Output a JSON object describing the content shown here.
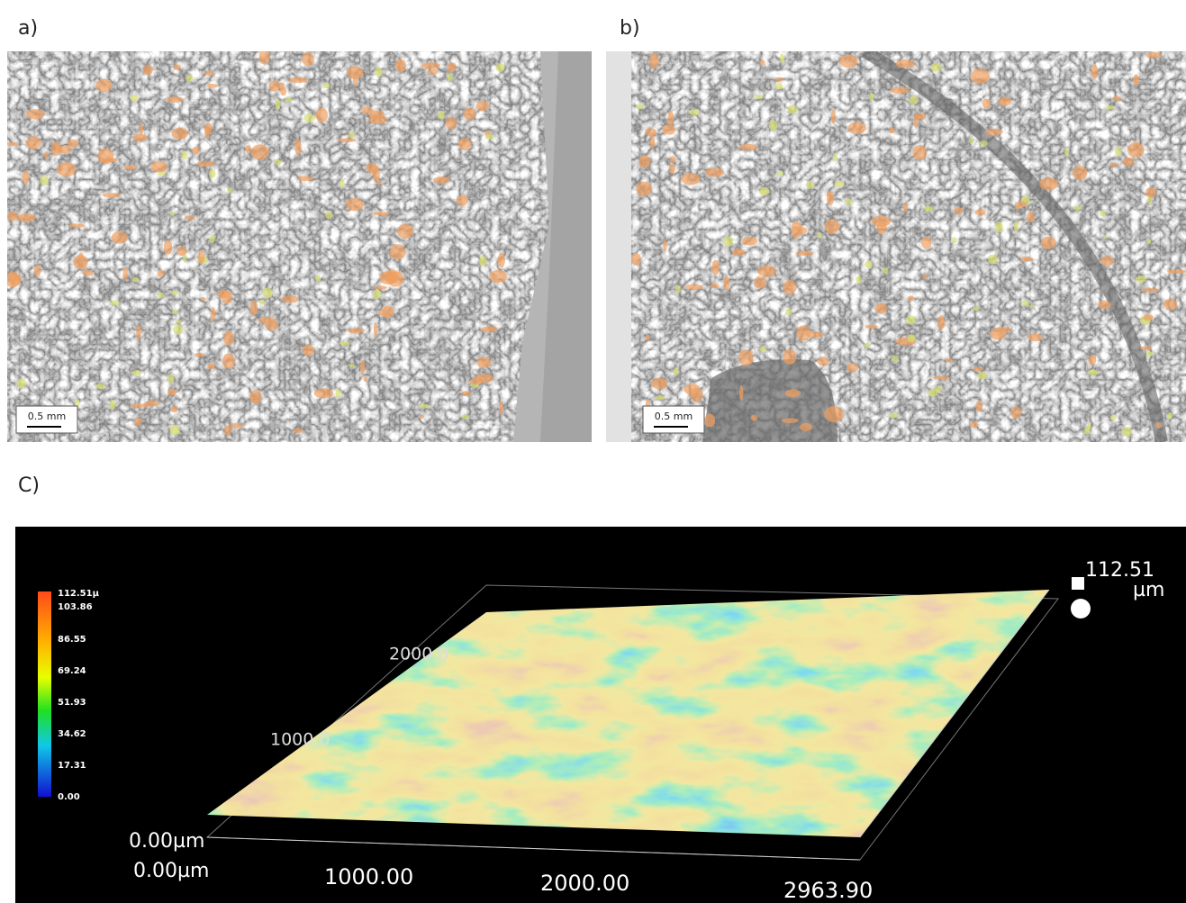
{
  "panels": [
    {
      "label": "a)",
      "scale_bar": "0.5 mm"
    },
    {
      "label": "b)",
      "scale_bar": "0.5 mm"
    }
  ],
  "panel_c": {
    "label": "C)",
    "colorbar": {
      "labels": [
        "112.51µ",
        "103.86",
        "86.55",
        "69.24",
        "51.93",
        "34.62",
        "17.31",
        "0.00"
      ]
    },
    "z_max": {
      "value": "112.51",
      "unit": "µm"
    },
    "y_axis": [
      "2000.0",
      "1000.0"
    ],
    "z_origin": "0.00µm",
    "x_axis": [
      "0.00µm",
      "1000.00",
      "2000.00",
      "2963.90"
    ]
  }
}
